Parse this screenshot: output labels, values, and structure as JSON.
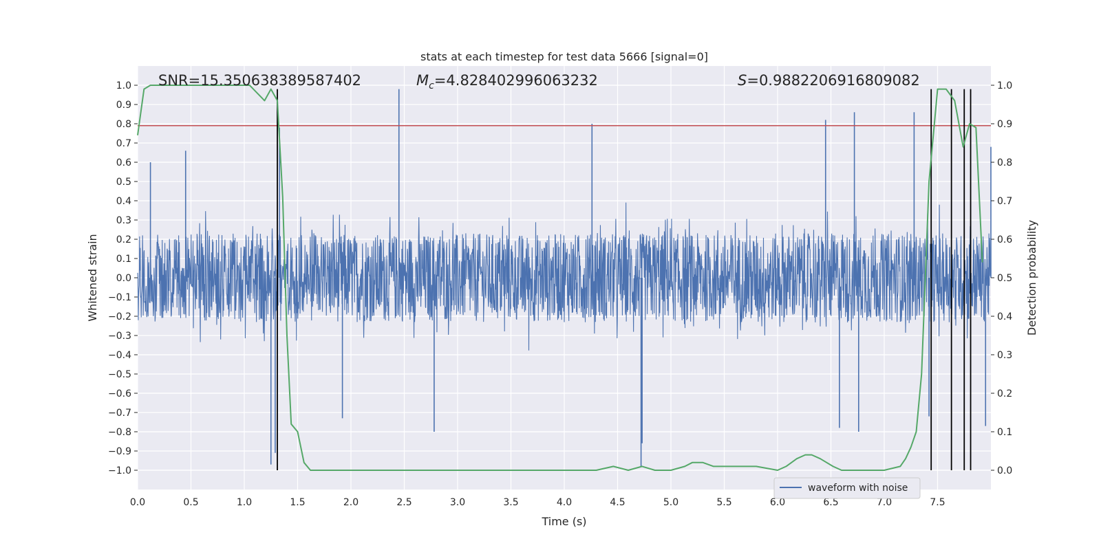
{
  "chart_data": {
    "type": "line",
    "title": "stats at each timestep for test data 5666 [signal=0]",
    "xlabel": "Time (s)",
    "ylabel": "Whitened strain",
    "y2label": "Detection probability",
    "xlim": [
      0.0,
      8.0
    ],
    "ylim": [
      -1.1,
      1.1
    ],
    "y2lim": [
      -0.05,
      1.05
    ],
    "xticks": [
      "0.0",
      "0.5",
      "1.0",
      "1.5",
      "2.0",
      "2.5",
      "3.0",
      "3.5",
      "4.0",
      "4.5",
      "5.0",
      "5.5",
      "6.0",
      "6.5",
      "7.0",
      "7.5"
    ],
    "yticks": [
      "−1.0",
      "−0.9",
      "−0.8",
      "−0.7",
      "−0.6",
      "−0.5",
      "−0.4",
      "−0.3",
      "−0.2",
      "−0.1",
      "0.0",
      "0.1",
      "0.2",
      "0.3",
      "0.4",
      "0.5",
      "0.6",
      "0.7",
      "0.8",
      "0.9",
      "1.0"
    ],
    "y2ticks": [
      "0.0",
      "0.1",
      "0.2",
      "0.3",
      "0.4",
      "0.5",
      "0.6",
      "0.7",
      "0.8",
      "0.9",
      "1.0"
    ],
    "grid": true,
    "legend": {
      "position": "lower-right",
      "entries": [
        "waveform with noise"
      ]
    },
    "annotations": {
      "snr": "SNR=15.350638389587402",
      "mc_symbol": "M",
      "mc_sub": "c",
      "mc_value": "=4.828402996063232",
      "s_symbol": "S",
      "s_value": "=0.9882206916809082"
    },
    "colors": {
      "waveform": "#4c72b0",
      "probability": "#55a868",
      "threshold": "#c44e52",
      "detections": "#000000",
      "axes_bg": "#eaeaf2",
      "grid": "#ffffff"
    },
    "series": [
      {
        "name": "waveform with noise",
        "axis": "left",
        "color": "#4c72b0",
        "envelope": {
          "typical_amplitude": 0.42,
          "max_amplitude": 1.0
        },
        "spikes": [
          {
            "x": 0.12,
            "y": 0.6
          },
          {
            "x": 0.45,
            "y": 0.66
          },
          {
            "x": 1.25,
            "y": -0.97
          },
          {
            "x": 1.29,
            "y": -0.91
          },
          {
            "x": 1.33,
            "y": 0.78
          },
          {
            "x": 1.92,
            "y": -0.73
          },
          {
            "x": 2.45,
            "y": 0.98
          },
          {
            "x": 2.78,
            "y": -0.8
          },
          {
            "x": 4.26,
            "y": 0.8
          },
          {
            "x": 4.72,
            "y": -0.98
          },
          {
            "x": 4.73,
            "y": -0.86
          },
          {
            "x": 6.45,
            "y": 0.82
          },
          {
            "x": 6.58,
            "y": -0.78
          },
          {
            "x": 6.72,
            "y": 0.86
          },
          {
            "x": 6.76,
            "y": -0.8
          },
          {
            "x": 7.28,
            "y": 0.86
          },
          {
            "x": 7.42,
            "y": -0.72
          },
          {
            "x": 7.95,
            "y": -0.77
          },
          {
            "x": 8.0,
            "y": 0.68
          }
        ]
      },
      {
        "name": "detection probability",
        "axis": "right",
        "color": "#55a868",
        "x": [
          0.0,
          0.06,
          0.12,
          0.3,
          0.5,
          0.7,
          0.9,
          1.05,
          1.12,
          1.19,
          1.25,
          1.31,
          1.36,
          1.4,
          1.44,
          1.5,
          1.56,
          1.62,
          1.7,
          2.0,
          2.3,
          2.6,
          3.0,
          3.5,
          4.0,
          4.3,
          4.46,
          4.6,
          4.73,
          4.85,
          5.0,
          5.13,
          5.2,
          5.3,
          5.4,
          5.6,
          5.8,
          6.0,
          6.08,
          6.18,
          6.26,
          6.32,
          6.4,
          6.52,
          6.6,
          6.7,
          7.0,
          7.15,
          7.2,
          7.25,
          7.3,
          7.35,
          7.42,
          7.5,
          7.58,
          7.66,
          7.74,
          7.8,
          7.86,
          7.92
        ],
        "y": [
          0.87,
          0.99,
          1.0,
          1.0,
          1.0,
          1.0,
          1.0,
          1.0,
          0.98,
          0.96,
          0.99,
          0.96,
          0.71,
          0.35,
          0.12,
          0.1,
          0.02,
          0.0,
          0.0,
          0.0,
          0.0,
          0.0,
          0.0,
          0.0,
          0.0,
          0.0,
          0.01,
          0.0,
          0.01,
          0.0,
          0.0,
          0.01,
          0.02,
          0.02,
          0.01,
          0.01,
          0.01,
          0.0,
          0.01,
          0.03,
          0.04,
          0.04,
          0.03,
          0.01,
          0.0,
          0.0,
          0.0,
          0.01,
          0.03,
          0.06,
          0.1,
          0.25,
          0.75,
          0.99,
          0.99,
          0.96,
          0.84,
          0.9,
          0.89,
          0.54
        ]
      },
      {
        "name": "threshold",
        "axis": "left",
        "color": "#c44e52",
        "y": 0.79
      }
    ],
    "detections_x": [
      1.31,
      7.44,
      7.63,
      7.75,
      7.81
    ],
    "detections_y": [
      -1.0,
      0.99
    ]
  }
}
